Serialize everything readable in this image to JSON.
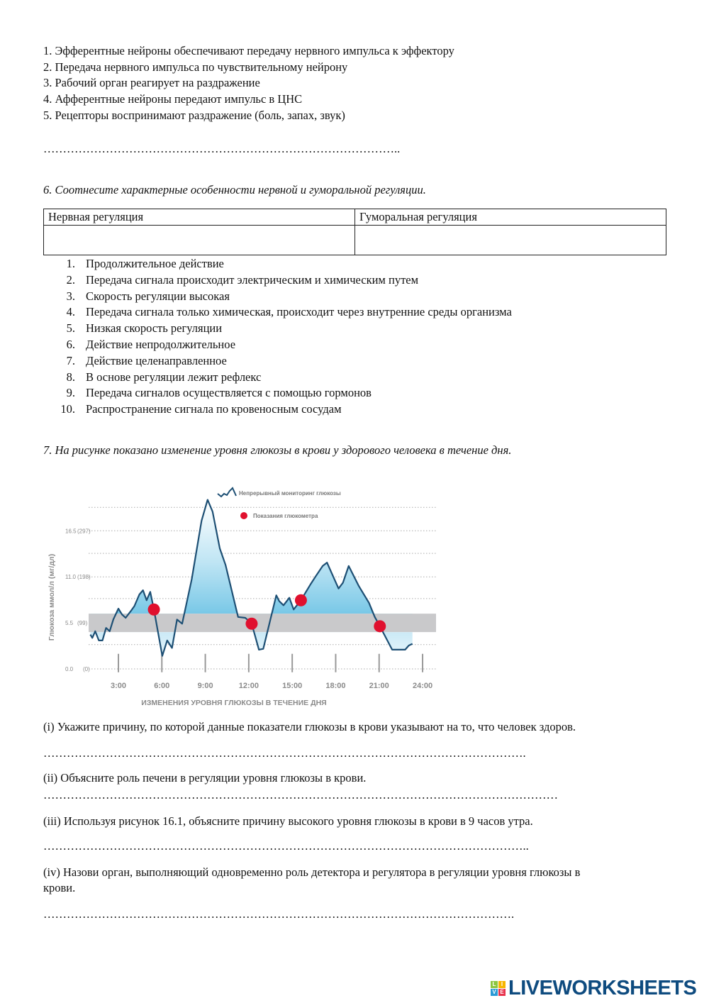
{
  "q5": {
    "items": [
      "1. Эфферентные нейроны обеспечивают передачу нервного импульса к эффектору",
      "2. Передача нервного импульса по чувствительному нейрону",
      "3. Рабочий орган реагирует на раздражение",
      "4. Афферентные нейроны передают импульс в ЦНС",
      "5. Рецепторы воспринимают раздражение (боль, запах, звук)"
    ],
    "answer_line": "……………………………………………………………………………….."
  },
  "q6": {
    "title": "6. Соотнесите характерные особенности нервной и гуморальной регуляции.",
    "table": {
      "headers": [
        "Нервная регуляция",
        "Гуморальная регуляция"
      ],
      "cells": [
        "",
        ""
      ]
    },
    "items": [
      {
        "n": "1.",
        "t": "Продолжительное действие"
      },
      {
        "n": "2.",
        "t": "Передача сигнала происходит электрическим и химическим путем"
      },
      {
        "n": "3.",
        "t": "Скорость регуляции высокая"
      },
      {
        "n": "4.",
        "t": "Передача сигнала только химическая, происходит через внутренние среды организма"
      },
      {
        "n": "5.",
        "t": "Низкая скорость регуляции"
      },
      {
        "n": "6.",
        "t": "Действие непродолжительное"
      },
      {
        "n": "7.",
        "t": "Действие целенаправленное"
      },
      {
        "n": "8.",
        "t": "В основе регуляции лежит рефлекс"
      },
      {
        "n": "9.",
        "t": "Передача сигналов осуществляется с помощью гормонов"
      },
      {
        "n": "10.",
        "t": "Распространение сигнала по кровеносным сосудам"
      }
    ]
  },
  "q7": {
    "title": "7. На рисунке показано изменение уровня глюкозы в крови у здорового человека в течение дня.",
    "questions": [
      {
        "text": "(i) Укажите причину, по которой данные показатели глюкозы в крови указывают на то, что человек здоров.",
        "line": "……………………………………………………………………………………………………………."
      },
      {
        "text": " (ii) Объясните роль печени в регуляции уровня глюкозы в крови.",
        "line": "……………………………………………………………………………………………………………………"
      },
      {
        "text": " (iii) Используя рисунок 16.1, объясните причину высокого уровня глюкозы в крови в 9 часов утра.",
        "line": "…………………………………………………………………………………………………………….."
      },
      {
        "text": " (iv) Назови орган, выполняющий одновременно роль детектора и регулятора в регуляции уровня глюкозы в",
        "text2": "крови.",
        "line": "…………………………………………………………………………………………………………."
      }
    ]
  },
  "chart_data": {
    "type": "line",
    "xlabel": "ИЗМЕНЕНИЯ УРОВНЯ ГЛЮКОЗЫ В ТЕЧЕНИЕ ДНЯ",
    "ylabel": "Глюкоза ммол/л (мг/дл)",
    "x_ticks": [
      "3:00",
      "6:00",
      "9:00",
      "12:00",
      "15:00",
      "18:00",
      "21:00",
      "24:00"
    ],
    "y_ticks": [
      {
        "v": 0,
        "mmol": "0.0",
        "mg": "(0)"
      },
      {
        "v": 5.5,
        "mmol": "5.5",
        "mg": "(99)"
      },
      {
        "v": 11,
        "mmol": "11.0",
        "mg": "(198)"
      },
      {
        "v": 16.5,
        "mmol": "16.5",
        "mg": "(297)"
      }
    ],
    "gridlines": [
      0,
      2.9,
      5.5,
      8.4,
      11,
      13.8,
      16.5,
      19.3
    ],
    "target_range": [
      4.4,
      6.6
    ],
    "legend": {
      "line": "Непрерывный мониторинг глюкозы",
      "dots": "Показания глюкометра",
      "placement": "top-right"
    },
    "colors": {
      "line": "#1d4f74",
      "dots": "#e0102e",
      "band": "#c9c9cb",
      "fill": "#3fb0dc"
    },
    "series": [
      {
        "name": "Непрерывный мониторинг глюкозы",
        "points": [
          [
            1.06,
            4.1
          ],
          [
            1.2,
            3.7
          ],
          [
            1.4,
            4.5
          ],
          [
            1.65,
            3.4
          ],
          [
            1.9,
            3.4
          ],
          [
            2.15,
            4.9
          ],
          [
            2.4,
            4.5
          ],
          [
            2.65,
            5.9
          ],
          [
            3.0,
            7.2
          ],
          [
            3.25,
            6.5
          ],
          [
            3.5,
            6.1
          ],
          [
            3.85,
            6.9
          ],
          [
            4.1,
            7.5
          ],
          [
            4.45,
            8.9
          ],
          [
            4.7,
            9.4
          ],
          [
            4.95,
            8.2
          ],
          [
            5.2,
            9.2
          ],
          [
            5.45,
            7.1
          ],
          [
            6.03,
            1.55
          ],
          [
            6.37,
            3.4
          ],
          [
            6.7,
            2.5
          ],
          [
            7.05,
            5.9
          ],
          [
            7.4,
            5.4
          ],
          [
            8.06,
            10.7
          ],
          [
            8.74,
            17.7
          ],
          [
            9.16,
            20.2
          ],
          [
            9.5,
            18.8
          ],
          [
            10.0,
            14.4
          ],
          [
            10.4,
            12.4
          ],
          [
            11.26,
            6.2
          ],
          [
            11.76,
            6.1
          ],
          [
            12.2,
            5.4
          ],
          [
            12.7,
            2.3
          ],
          [
            13.0,
            2.4
          ],
          [
            13.9,
            8.8
          ],
          [
            14.1,
            8.1
          ],
          [
            14.4,
            7.6
          ],
          [
            14.8,
            8.5
          ],
          [
            15.1,
            7.1
          ],
          [
            15.6,
            8.2
          ],
          [
            16.3,
            10.2
          ],
          [
            16.6,
            11.0
          ],
          [
            17.1,
            12.3
          ],
          [
            17.4,
            12.7
          ],
          [
            18.2,
            9.6
          ],
          [
            18.5,
            10.3
          ],
          [
            18.9,
            12.3
          ],
          [
            19.6,
            9.9
          ],
          [
            20.3,
            7.9
          ],
          [
            20.7,
            6.2
          ],
          [
            21.05,
            5.1
          ],
          [
            21.9,
            2.3
          ],
          [
            22.8,
            2.3
          ],
          [
            23.05,
            2.8
          ],
          [
            23.3,
            3.0
          ]
        ]
      },
      {
        "name": "Показания глюкометра",
        "points": [
          [
            5.45,
            7.1
          ],
          [
            12.2,
            5.4
          ],
          [
            15.6,
            8.2
          ],
          [
            21.05,
            5.1
          ]
        ]
      }
    ]
  },
  "logo": {
    "text": "LIVEWORKSHEETS",
    "tiles": [
      "L",
      "I",
      "V",
      "E"
    ]
  }
}
